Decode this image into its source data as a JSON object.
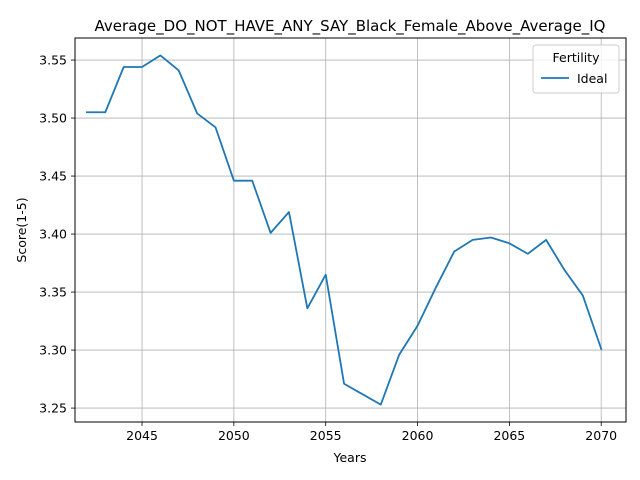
{
  "chart_data": {
    "type": "line",
    "title": "Average_DO_NOT_HAVE_ANY_SAY_Black_Female_Above_Average_IQ",
    "xlabel": "Years",
    "ylabel": "Score(1-5)",
    "xlim": [
      2041.35,
      2071.35
    ],
    "ylim": [
      3.238,
      3.569
    ],
    "x_ticks": [
      2045,
      2050,
      2055,
      2060,
      2065,
      2070
    ],
    "y_ticks": [
      3.25,
      3.3,
      3.35,
      3.4,
      3.45,
      3.5,
      3.55
    ],
    "x_tick_labels": [
      "2045",
      "2050",
      "2055",
      "2060",
      "2065",
      "2070"
    ],
    "y_tick_labels": [
      "3.25",
      "3.30",
      "3.35",
      "3.40",
      "3.45",
      "3.50",
      "3.55"
    ],
    "grid": true,
    "legend": {
      "title": "Fertility",
      "position": "top-right"
    },
    "series": [
      {
        "name": "Ideal",
        "color": "#1f77b4",
        "x": [
          2042,
          2043,
          2044,
          2045,
          2046,
          2047,
          2048,
          2049,
          2050,
          2051,
          2052,
          2053,
          2054,
          2055,
          2056,
          2057,
          2058,
          2059,
          2060,
          2061,
          2062,
          2063,
          2064,
          2065,
          2066,
          2067,
          2068,
          2069,
          2070
        ],
        "y": [
          3.505,
          3.505,
          3.544,
          3.544,
          3.554,
          3.541,
          3.504,
          3.492,
          3.446,
          3.446,
          3.401,
          3.419,
          3.336,
          3.365,
          3.271,
          3.262,
          3.253,
          3.296,
          3.321,
          3.354,
          3.385,
          3.395,
          3.397,
          3.392,
          3.383,
          3.395,
          3.369,
          3.347,
          3.301
        ]
      }
    ]
  }
}
